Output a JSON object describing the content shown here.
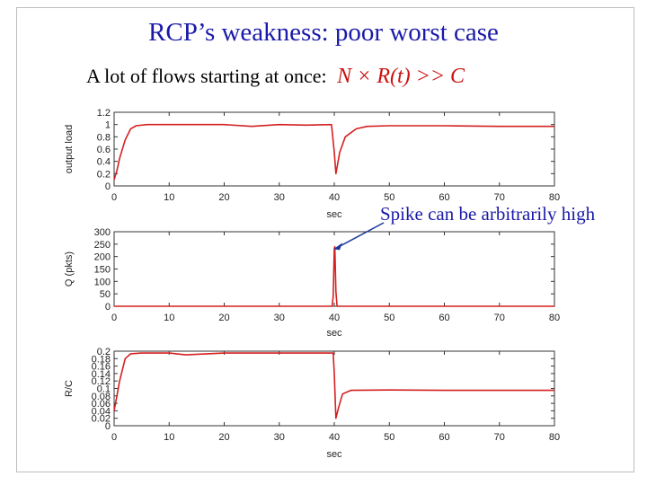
{
  "slide": {
    "title": "RCP’s weakness: poor worst case",
    "subtitle_text": "A lot of flows starting at once:",
    "subtitle_math": "N × R(t) >> C",
    "annotation": "Spike can be arbitrarily high"
  },
  "colors": {
    "series": "#d42020",
    "title": "#1a1aa8",
    "annotation": "#1a1aa8",
    "arrow": "#1a3a9a"
  },
  "chart_data": [
    {
      "type": "line",
      "xlabel": "sec",
      "ylabel": "output load",
      "xlim": [
        0,
        80
      ],
      "ylim": [
        0,
        1.2
      ],
      "xticks": [
        0,
        10,
        20,
        30,
        40,
        50,
        60,
        70,
        80
      ],
      "yticks": [
        0,
        0.2,
        0.4,
        0.6,
        0.8,
        1,
        1.2
      ],
      "series": [
        {
          "x": [
            0,
            0.5,
            1,
            2,
            3,
            4,
            6,
            10,
            20,
            25,
            30,
            35,
            39.5,
            40.0,
            40.3,
            41,
            42,
            44,
            46,
            50,
            60,
            70,
            80
          ],
          "y": [
            0.1,
            0.25,
            0.45,
            0.75,
            0.93,
            0.98,
            1.0,
            1.0,
            1.0,
            0.97,
            1.0,
            0.99,
            1.0,
            0.55,
            0.2,
            0.55,
            0.8,
            0.93,
            0.97,
            0.98,
            0.98,
            0.97,
            0.97
          ]
        }
      ]
    },
    {
      "type": "line",
      "xlabel": "sec",
      "ylabel": "Q (pkts)",
      "xlim": [
        0,
        80
      ],
      "ylim": [
        0,
        300
      ],
      "xticks": [
        0,
        10,
        20,
        30,
        40,
        50,
        60,
        70,
        80
      ],
      "yticks": [
        0,
        50,
        100,
        150,
        200,
        250,
        300
      ],
      "series": [
        {
          "x": [
            0,
            39.6,
            39.8,
            40.0,
            40.1,
            40.3,
            40.5,
            80
          ],
          "y": [
            0,
            0,
            40,
            230,
            240,
            60,
            0,
            0
          ]
        }
      ]
    },
    {
      "type": "line",
      "xlabel": "sec",
      "ylabel": "R/C",
      "xlim": [
        0,
        80
      ],
      "ylim": [
        0,
        0.2
      ],
      "xticks": [
        0,
        10,
        20,
        30,
        40,
        50,
        60,
        70,
        80
      ],
      "yticks": [
        0,
        0.02,
        0.04,
        0.06,
        0.08,
        0.1,
        0.12,
        0.14,
        0.16,
        0.18,
        0.2
      ],
      "series": [
        {
          "x": [
            0,
            0.5,
            1,
            2,
            3,
            5,
            10,
            13,
            20,
            30,
            39.8,
            40.0,
            40.3,
            40.8,
            41.5,
            43,
            50,
            60,
            70,
            80
          ],
          "y": [
            0.04,
            0.08,
            0.12,
            0.18,
            0.193,
            0.195,
            0.195,
            0.19,
            0.195,
            0.195,
            0.195,
            0.14,
            0.02,
            0.05,
            0.085,
            0.095,
            0.096,
            0.095,
            0.095,
            0.095
          ]
        }
      ]
    }
  ]
}
